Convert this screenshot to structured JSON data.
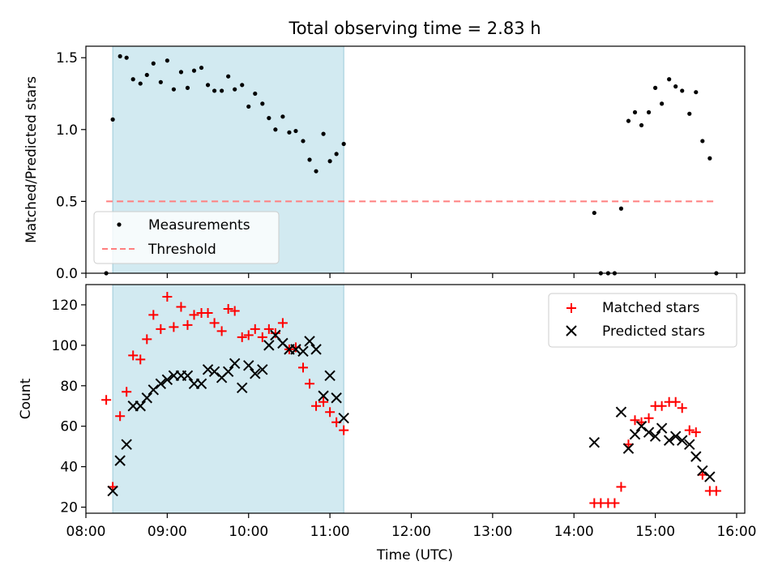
{
  "chart_data": [
    {
      "type": "scatter",
      "title": "Total observing time = 2.83 h",
      "xlabel": "",
      "ylabel": "Matched/Predicted stars",
      "xlim": [
        8.0,
        16.1
      ],
      "ylim": [
        0,
        1.58
      ],
      "yticks": [
        0.0,
        0.5,
        1.0,
        1.5
      ],
      "ytick_labels": [
        "0.0",
        "0.5",
        "1.0",
        "1.5"
      ],
      "shaded_x_range": [
        8.33,
        11.17
      ],
      "shade_color": "#add8e6",
      "legend_position": "lower-left",
      "series": [
        {
          "name": "Measurements",
          "color": "#000000",
          "marker": "dot",
          "x": [
            8.25,
            8.33,
            8.42,
            8.5,
            8.58,
            8.67,
            8.75,
            8.83,
            8.92,
            9.0,
            9.08,
            9.17,
            9.25,
            9.33,
            9.42,
            9.5,
            9.58,
            9.67,
            9.75,
            9.83,
            9.92,
            10.0,
            10.08,
            10.17,
            10.25,
            10.33,
            10.42,
            10.5,
            10.58,
            10.67,
            10.75,
            10.83,
            10.92,
            11.0,
            11.08,
            11.17,
            14.25,
            14.33,
            14.42,
            14.5,
            14.58,
            14.67,
            14.75,
            14.83,
            14.92,
            15.0,
            15.08,
            15.17,
            15.25,
            15.33,
            15.42,
            15.5,
            15.58,
            15.67,
            15.75
          ],
          "y": [
            0.0,
            1.07,
            1.51,
            1.5,
            1.35,
            1.32,
            1.38,
            1.46,
            1.33,
            1.48,
            1.28,
            1.4,
            1.29,
            1.41,
            1.43,
            1.31,
            1.27,
            1.27,
            1.37,
            1.28,
            1.31,
            1.16,
            1.25,
            1.18,
            1.08,
            1.0,
            1.09,
            0.98,
            0.99,
            0.92,
            0.79,
            0.71,
            0.97,
            0.78,
            0.83,
            0.9,
            0.42,
            0.0,
            0.0,
            0.0,
            0.45,
            1.06,
            1.12,
            1.03,
            1.12,
            1.29,
            1.18,
            1.35,
            1.3,
            1.27,
            1.11,
            1.26,
            0.92,
            0.8,
            0.0
          ]
        },
        {
          "name": "Threshold",
          "color": "#ff7f7f",
          "style": "dashed",
          "x": [
            8.25,
            15.75
          ],
          "y": [
            0.5,
            0.5
          ]
        }
      ]
    },
    {
      "type": "scatter",
      "title": "",
      "xlabel": "Time (UTC)",
      "ylabel": "Count",
      "xlim": [
        8.0,
        16.1
      ],
      "ylim": [
        17,
        130
      ],
      "yticks": [
        20,
        40,
        60,
        80,
        100,
        120
      ],
      "xticks": [
        8,
        9,
        10,
        11,
        12,
        13,
        14,
        15,
        16
      ],
      "xtick_labels": [
        "08:00",
        "09:00",
        "10:00",
        "11:00",
        "12:00",
        "13:00",
        "14:00",
        "15:00",
        "16:00"
      ],
      "shaded_x_range": [
        8.33,
        11.17
      ],
      "shade_color": "#add8e6",
      "legend_position": "upper-right",
      "series": [
        {
          "name": "Matched stars",
          "color": "#ff0000",
          "marker": "plus",
          "x": [
            8.25,
            8.33,
            8.42,
            8.5,
            8.58,
            8.67,
            8.75,
            8.83,
            8.92,
            9.0,
            9.08,
            9.17,
            9.25,
            9.33,
            9.42,
            9.5,
            9.58,
            9.67,
            9.75,
            9.83,
            9.92,
            10.0,
            10.08,
            10.17,
            10.25,
            10.33,
            10.42,
            10.5,
            10.58,
            10.67,
            10.75,
            10.83,
            10.92,
            11.0,
            11.08,
            11.17,
            14.25,
            14.33,
            14.42,
            14.5,
            14.58,
            14.67,
            14.75,
            14.83,
            14.92,
            15.0,
            15.08,
            15.17,
            15.25,
            15.33,
            15.42,
            15.5,
            15.58,
            15.67,
            15.75
          ],
          "y": [
            73,
            30,
            65,
            77,
            95,
            93,
            103,
            115,
            108,
            124,
            109,
            119,
            110,
            115,
            116,
            116,
            111,
            107,
            118,
            117,
            104,
            105,
            108,
            104,
            108,
            106,
            111,
            98,
            99,
            89,
            81,
            70,
            72,
            67,
            62,
            58,
            22,
            22,
            22,
            22,
            30,
            51,
            63,
            62,
            64,
            70,
            70,
            72,
            72,
            69,
            58,
            57,
            36,
            28,
            28
          ]
        },
        {
          "name": "Predicted stars",
          "color": "#000000",
          "marker": "x",
          "x": [
            8.33,
            8.42,
            8.5,
            8.58,
            8.67,
            8.75,
            8.83,
            8.92,
            9.0,
            9.08,
            9.17,
            9.25,
            9.33,
            9.42,
            9.5,
            9.58,
            9.67,
            9.75,
            9.83,
            9.92,
            10.0,
            10.08,
            10.17,
            10.25,
            10.33,
            10.42,
            10.5,
            10.58,
            10.67,
            10.75,
            10.83,
            10.92,
            11.0,
            11.08,
            11.17,
            14.25,
            14.58,
            14.67,
            14.75,
            14.83,
            14.92,
            15.0,
            15.08,
            15.17,
            15.25,
            15.33,
            15.42,
            15.5,
            15.58,
            15.67
          ],
          "y": [
            28,
            43,
            51,
            70,
            70,
            74,
            78,
            81,
            83,
            85,
            85,
            85,
            81,
            81,
            88,
            87,
            84,
            87,
            91,
            79,
            90,
            86,
            88,
            100,
            105,
            101,
            98,
            98,
            97,
            102,
            98,
            75,
            85,
            74,
            64,
            52,
            67,
            49,
            56,
            60,
            57,
            55,
            59,
            53,
            55,
            53,
            51,
            45,
            38,
            35
          ]
        }
      ]
    }
  ]
}
